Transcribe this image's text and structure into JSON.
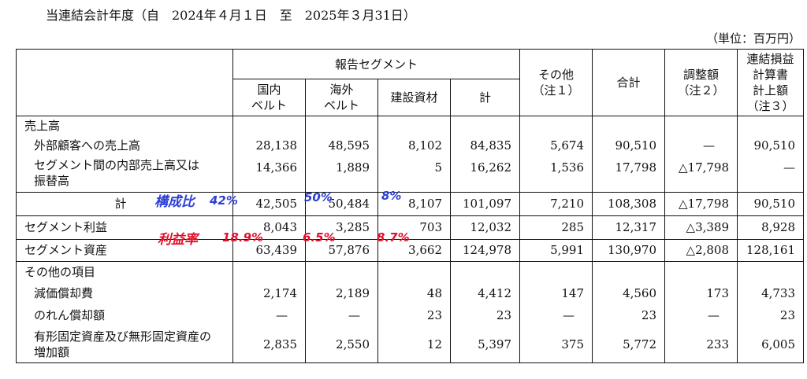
{
  "period_title": "当連結会計年度（自　2024年４月１日　至　2025年３月31日）",
  "unit_label": "（単位：百万円）",
  "headers": {
    "group": "報告セグメント",
    "domestic": "国内\nベルト",
    "overseas": "海外\nベルト",
    "construction": "建設資材",
    "subtotal": "計",
    "other": "その他\n（注１）",
    "total": "合計",
    "adjustment": "調整額\n（注２）",
    "consolidated": "連結損益\n計算書\n計上額\n（注３）"
  },
  "rows": {
    "sales_heading": "売上高",
    "external_sales": {
      "label": "外部顧客への売上高",
      "values": [
        "28,138",
        "48,595",
        "8,102",
        "84,835",
        "5,674",
        "90,510",
        "—",
        "90,510"
      ]
    },
    "intersegment": {
      "label": "セグメント間の内部売上高又は振替高",
      "values": [
        "14,366",
        "1,889",
        "5",
        "16,262",
        "1,536",
        "17,798",
        "△17,798",
        "—"
      ]
    },
    "total": {
      "label": "計",
      "values": [
        "42,505",
        "50,484",
        "8,107",
        "101,097",
        "7,210",
        "108,308",
        "△17,798",
        "90,510"
      ]
    },
    "segment_profit": {
      "label": "セグメント利益",
      "values": [
        "8,043",
        "3,285",
        "703",
        "12,032",
        "285",
        "12,317",
        "△3,389",
        "8,928"
      ]
    },
    "segment_assets": {
      "label": "セグメント資産",
      "values": [
        "63,439",
        "57,876",
        "3,662",
        "124,978",
        "5,991",
        "130,970",
        "△2,808",
        "128,161"
      ]
    },
    "other_heading": "その他の項目",
    "depreciation": {
      "label": "減価償却費",
      "values": [
        "2,174",
        "2,189",
        "48",
        "4,412",
        "147",
        "4,560",
        "173",
        "4,733"
      ]
    },
    "goodwill": {
      "label": "のれん償却額",
      "values": [
        "—",
        "—",
        "23",
        "23",
        "—",
        "23",
        "—",
        "23"
      ]
    },
    "capex": {
      "label": "有形固定資産及び無形固定資産の増加額",
      "values": [
        "2,835",
        "2,550",
        "12",
        "5,397",
        "375",
        "5,772",
        "233",
        "6,005"
      ]
    }
  },
  "annotations": {
    "blue_label": "構成比",
    "blue_domestic": "42%",
    "blue_overseas": "50%",
    "blue_construction": "8%",
    "red_label": "利益率",
    "red_domestic": "18.9%",
    "red_overseas": "6.5%",
    "red_construction": "8.7%"
  },
  "colors": {
    "blue_ink": "#2c3fd6",
    "red_ink": "#e0102a"
  }
}
